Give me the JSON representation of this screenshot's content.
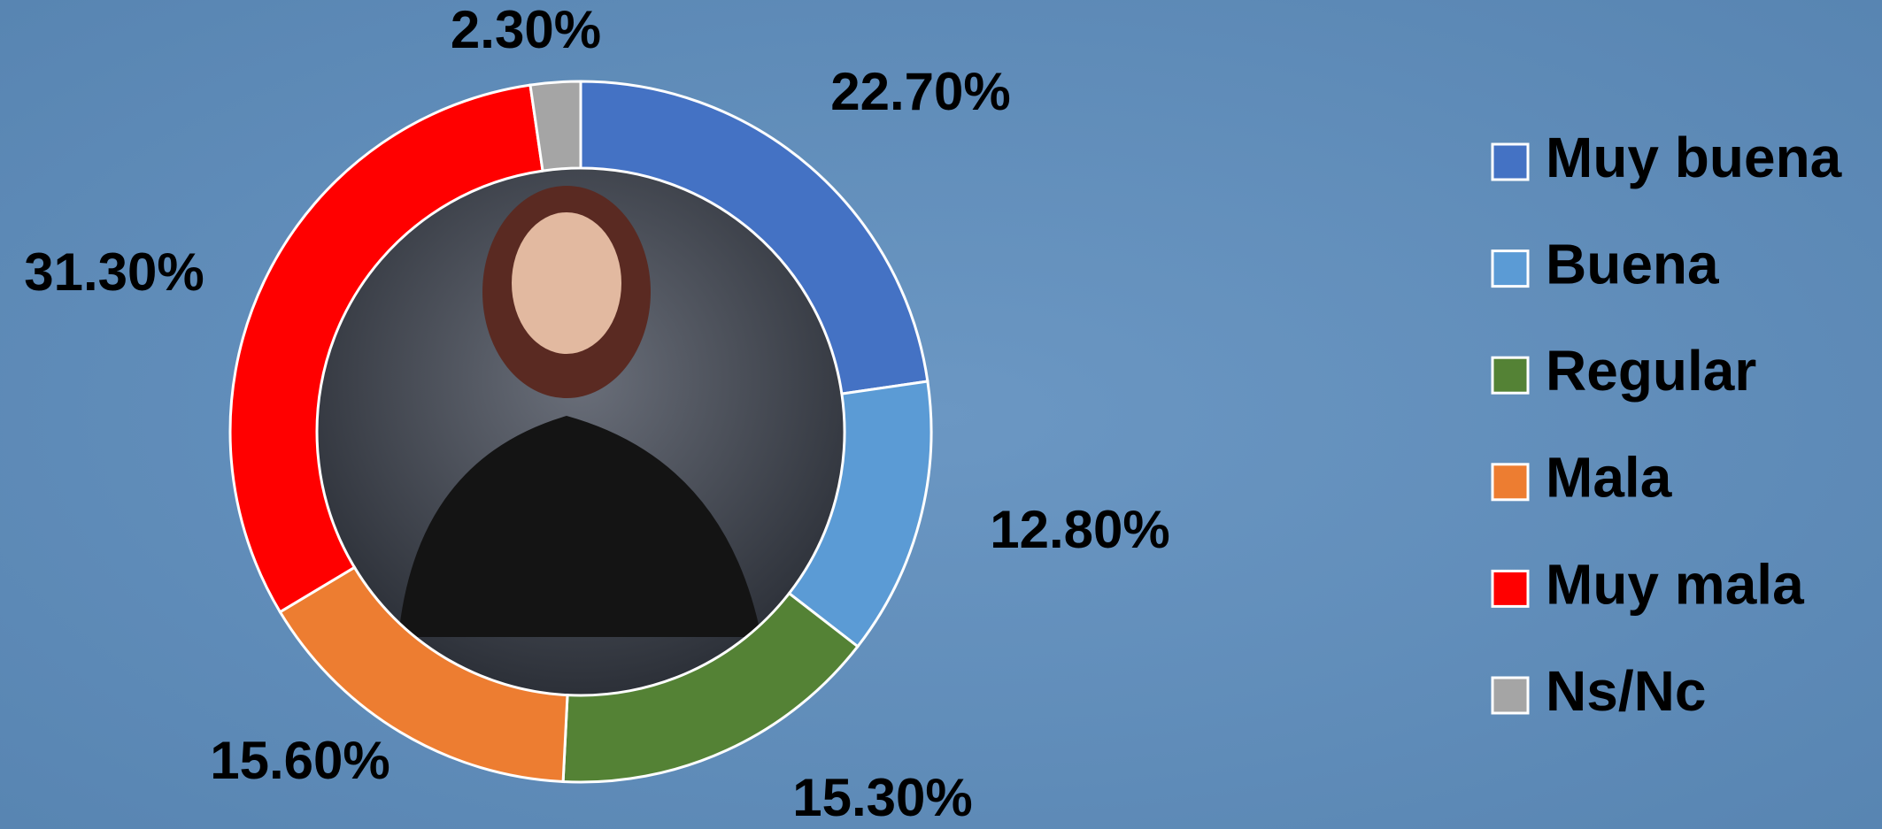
{
  "chart_data": {
    "type": "donut",
    "categories": [
      "Muy buena",
      "Buena",
      "Regular",
      "Mala",
      "Muy mala",
      "Ns/Nc"
    ],
    "values": [
      22.7,
      12.8,
      15.3,
      15.6,
      31.3,
      2.3
    ],
    "value_labels": [
      "22.70%",
      "12.80%",
      "15.30%",
      "15.60%",
      "31.30%",
      "2.30%"
    ],
    "colors": [
      "#4472c4",
      "#5b9bd5",
      "#548235",
      "#ed7d31",
      "#ff0000",
      "#a5a5a5"
    ],
    "legend": "right"
  }
}
